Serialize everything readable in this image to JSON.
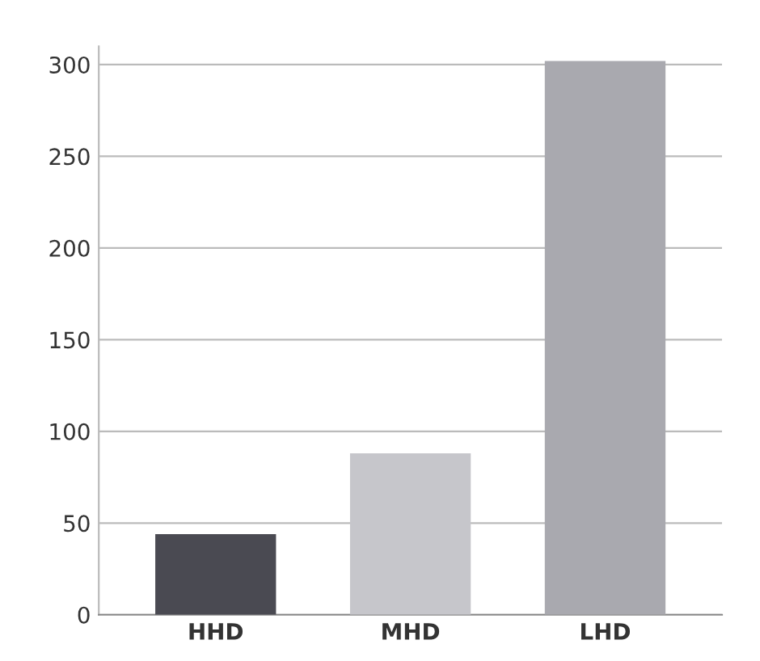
{
  "chart_data": {
    "type": "bar",
    "categories": [
      "HHD",
      "MHD",
      "LHD"
    ],
    "values": [
      44,
      88,
      302
    ],
    "colors": [
      "#4a4a52",
      "#c6c6cb",
      "#a9a9af"
    ],
    "ylim": [
      0,
      310
    ],
    "yticks": [
      0,
      50,
      100,
      150,
      200,
      250,
      300
    ],
    "grid": "y"
  }
}
